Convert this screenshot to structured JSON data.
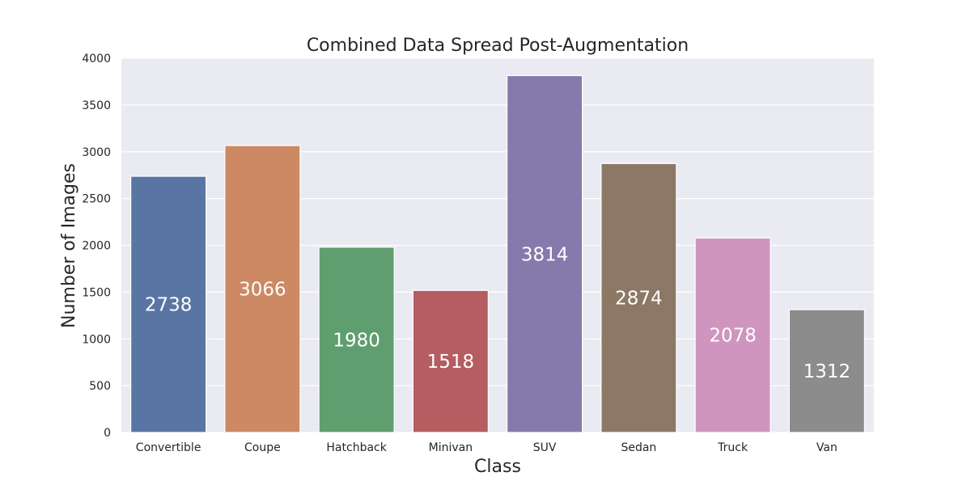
{
  "chart_data": {
    "type": "bar",
    "title": "Combined Data Spread Post-Augmentation",
    "xlabel": "Class",
    "ylabel": "Number of Images",
    "categories": [
      "Convertible",
      "Coupe",
      "Hatchback",
      "Minivan",
      "SUV",
      "Sedan",
      "Truck",
      "Van"
    ],
    "values": [
      2738,
      3066,
      1980,
      1518,
      3814,
      2874,
      2078,
      1312
    ],
    "ylim": [
      0,
      4000
    ],
    "yticks": [
      0,
      500,
      1000,
      1500,
      2000,
      2500,
      3000,
      3500,
      4000
    ],
    "grid": true,
    "data_labels": true,
    "colors": [
      "#5875a4",
      "#cc8963",
      "#5f9e6e",
      "#b55d60",
      "#857aab",
      "#8d7866",
      "#d095bf",
      "#8c8c8c"
    ],
    "background": "#eaeaf2"
  }
}
